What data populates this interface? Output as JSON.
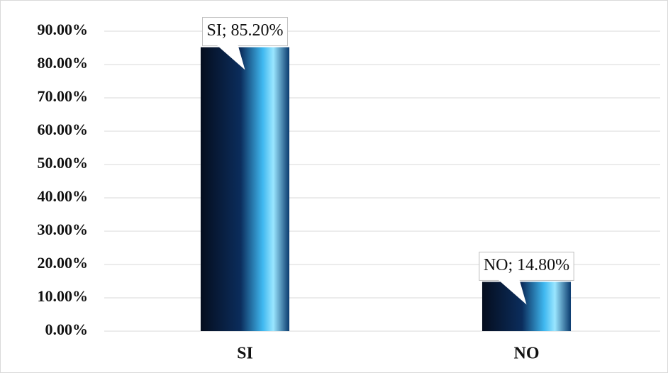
{
  "chart_data": {
    "type": "bar",
    "categories": [
      "SI",
      "NO"
    ],
    "values": [
      85.2,
      14.8
    ],
    "value_labels": [
      "SI; 85.20%",
      "NO; 14.80%"
    ],
    "ylim": [
      0,
      90
    ],
    "yticks": [
      {
        "value": 0,
        "label": "0.00%"
      },
      {
        "value": 10,
        "label": "10.00%"
      },
      {
        "value": 20,
        "label": "20.00%"
      },
      {
        "value": 30,
        "label": "30.00%"
      },
      {
        "value": 40,
        "label": "40.00%"
      },
      {
        "value": 50,
        "label": "50.00%"
      },
      {
        "value": 60,
        "label": "60.00%"
      },
      {
        "value": 70,
        "label": "70.00%"
      },
      {
        "value": 80,
        "label": "80.00%"
      },
      {
        "value": 90,
        "label": "90.00%"
      }
    ],
    "grid": true
  }
}
